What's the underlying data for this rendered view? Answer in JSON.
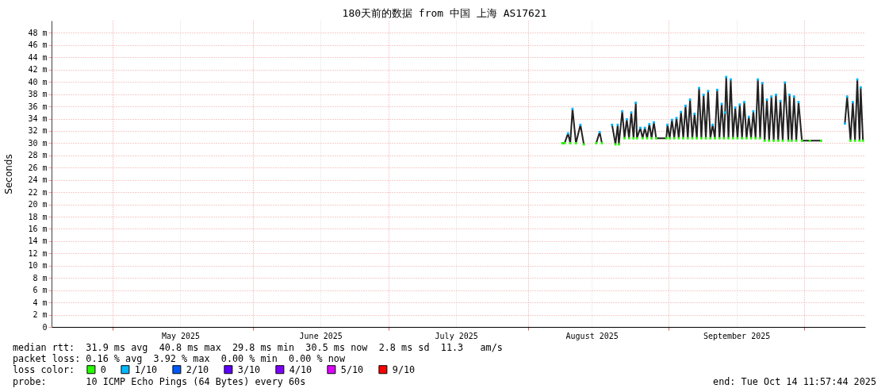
{
  "chart_data": {
    "type": "line",
    "title": "180天前的数据 from 中国 上海 AS17621",
    "ylabel": "Seconds",
    "legend_title": "loss color:",
    "annotations": [
      "median rtt:  31.9 ms avg  40.8 ms max  29.8 ms min  30.5 ms now  2.8 ms sd  11.3   am/s",
      "packet loss: 0.16 % avg  3.92 % max  0.00 % min  0.00 % now",
      "probe:       10 ICMP Echo Pings (64 Bytes) every 60s",
      "end: Tue Oct 14 11:57:44 2025"
    ],
    "xlim": [
      "2025-04-17T11:57",
      "2025-10-14T11:57"
    ],
    "xticks": [
      {
        "value": "2025-05-01",
        "label": null
      },
      {
        "value": "2025-05-16",
        "label": "May 2025"
      },
      {
        "value": "2025-06-01",
        "label": null
      },
      {
        "value": "2025-06-16",
        "label": "June 2025"
      },
      {
        "value": "2025-07-01",
        "label": null
      },
      {
        "value": "2025-07-16",
        "label": "July 2025"
      },
      {
        "value": "2025-08-01",
        "label": null
      },
      {
        "value": "2025-08-15",
        "label": "August 2025"
      },
      {
        "value": "2025-09-01",
        "label": null
      },
      {
        "value": "2025-09-16",
        "label": "September 2025"
      },
      {
        "value": "2025-10-01",
        "label": null
      }
    ],
    "ylim": [
      0,
      50
    ],
    "yticks": [
      0,
      {
        "value": 2,
        "label": "2 m"
      },
      {
        "value": 4,
        "label": "4 m"
      },
      {
        "value": 6,
        "label": "6 m"
      },
      {
        "value": 8,
        "label": "8 m"
      },
      {
        "value": 10,
        "label": "10 m"
      },
      {
        "value": 12,
        "label": "12 m"
      },
      {
        "value": 14,
        "label": "14 m"
      },
      {
        "value": 16,
        "label": "16 m"
      },
      {
        "value": 18,
        "label": "18 m"
      },
      {
        "value": 20,
        "label": "20 m"
      },
      {
        "value": 22,
        "label": "22 m"
      },
      {
        "value": 24,
        "label": "24 m"
      },
      {
        "value": 26,
        "label": "26 m"
      },
      {
        "value": 28,
        "label": "28 m"
      },
      {
        "value": 30,
        "label": "30 m"
      },
      {
        "value": 32,
        "label": "32 m"
      },
      {
        "value": 34,
        "label": "34 m"
      },
      {
        "value": 36,
        "label": "36 m"
      },
      {
        "value": 38,
        "label": "38 m"
      },
      {
        "value": 40,
        "label": "40 m"
      },
      {
        "value": 42,
        "label": "42 m"
      },
      {
        "value": 44,
        "label": "44 m"
      },
      {
        "value": 46,
        "label": "46 m"
      },
      {
        "value": 48,
        "label": "48 m"
      }
    ],
    "grid": true,
    "legend": "bottom left",
    "series": [
      {
        "color": "#222222",
        "x": [
          "2025-08-08T12:00",
          "2025-08-09T00:00",
          "2025-08-09T18:00",
          "2025-08-10T06:00",
          "2025-08-10T18:00",
          "2025-08-11T12:00",
          "2025-08-12T12:00",
          "2025-08-13T06:00",
          "2025-08-14T12:00",
          "2025-08-16T00:00",
          "2025-08-16T18:00",
          "2025-08-17T06:00",
          "2025-08-18T06:00",
          "2025-08-19T12:00",
          "2025-08-20T06:00",
          "2025-08-20T18:00",
          "2025-08-21T00:00",
          "2025-08-21T18:00",
          "2025-08-22T06:00",
          "2025-08-22T18:00",
          "2025-08-23T06:00",
          "2025-08-23T18:00",
          "2025-08-24T06:00",
          "2025-08-24T18:00",
          "2025-08-25T00:00",
          "2025-08-25T18:00",
          "2025-08-26T06:00",
          "2025-08-26T18:00",
          "2025-08-27T06:00",
          "2025-08-27T18:00",
          "2025-08-28T06:00",
          "2025-08-28T18:00",
          "2025-08-29T06:00",
          "2025-08-31T12:00",
          "2025-08-31T18:00",
          "2025-09-01T06:00",
          "2025-09-01T18:00",
          "2025-09-02T06:00",
          "2025-09-02T18:00",
          "2025-09-03T06:00",
          "2025-09-03T18:00",
          "2025-09-04T06:00",
          "2025-09-04T18:00",
          "2025-09-05T06:00",
          "2025-09-05T18:00",
          "2025-09-06T06:00",
          "2025-09-06T18:00",
          "2025-09-07T06:00",
          "2025-09-07T18:00",
          "2025-09-08T06:00",
          "2025-09-08T18:00",
          "2025-09-09T06:00",
          "2025-09-09T18:00",
          "2025-09-10T06:00",
          "2025-09-10T18:00",
          "2025-09-11T06:00",
          "2025-09-11T18:00",
          "2025-09-12T06:00",
          "2025-09-12T18:00",
          "2025-09-13T06:00",
          "2025-09-13T12:00",
          "2025-09-13T18:00",
          "2025-09-14T06:00",
          "2025-09-14T18:00",
          "2025-09-15T06:00",
          "2025-09-15T18:00",
          "2025-09-16T06:00",
          "2025-09-16T18:00",
          "2025-09-17T06:00",
          "2025-09-17T18:00",
          "2025-09-18T06:00",
          "2025-09-18T18:00",
          "2025-09-19T06:00",
          "2025-09-19T18:00",
          "2025-09-20T06:00",
          "2025-09-20T18:00",
          "2025-09-21T06:00",
          "2025-09-21T18:00",
          "2025-09-22T06:00",
          "2025-09-22T18:00",
          "2025-09-23T06:00",
          "2025-09-23T18:00",
          "2025-09-24T06:00",
          "2025-09-24T18:00",
          "2025-09-25T06:00",
          "2025-09-25T18:00",
          "2025-09-26T06:00",
          "2025-09-26T18:00",
          "2025-09-27T12:00",
          "2025-09-27T18:00",
          "2025-09-28T06:00",
          "2025-09-28T18:00",
          "2025-09-29T06:00",
          "2025-09-29T18:00",
          "2025-09-30T12:00",
          "2025-10-02T06:00",
          "2025-10-04T18:00",
          "2025-10-07T12:00",
          "2025-10-10T00:00",
          "2025-10-10T12:00",
          "2025-10-11T06:00",
          "2025-10-11T18:00",
          "2025-10-12T06:00",
          "2025-10-12T18:00",
          "2025-10-13T06:00",
          "2025-10-13T12:00",
          "2025-10-14T00:00"
        ],
        "values": [
          30.0,
          30.0,
          31.6,
          30.0,
          35.6,
          30.0,
          33.0,
          29.8,
          null,
          30.0,
          31.8,
          30.0,
          null,
          33.0,
          29.8,
          33.0,
          29.8,
          35.2,
          30.8,
          33.9,
          30.8,
          35.0,
          30.8,
          36.6,
          30.8,
          32.5,
          30.8,
          32.5,
          30.8,
          33.1,
          30.8,
          33.4,
          30.8,
          30.8,
          33.0,
          30.8,
          33.8,
          30.8,
          34.1,
          30.8,
          35.1,
          30.8,
          36.1,
          30.8,
          37.1,
          30.8,
          34.8,
          30.8,
          39.0,
          30.8,
          37.9,
          30.8,
          38.5,
          30.8,
          33.0,
          30.8,
          38.7,
          30.8,
          36.4,
          30.8,
          35.0,
          40.8,
          30.8,
          40.4,
          30.8,
          35.8,
          30.8,
          36.3,
          30.8,
          36.7,
          30.8,
          34.3,
          30.8,
          35.2,
          30.8,
          40.4,
          30.8,
          39.8,
          30.4,
          37.1,
          30.4,
          37.6,
          30.4,
          37.9,
          30.4,
          36.9,
          30.4,
          39.9,
          30.4,
          37.9,
          30.4,
          37.6,
          30.4,
          36.7,
          30.4,
          30.4,
          30.4,
          null,
          33.2,
          37.6,
          30.4,
          36.7,
          30.4,
          40.4,
          30.4,
          39.1,
          30.4
        ]
      },
      {
        "name": "0",
        "type": "scatter",
        "marker": "square",
        "color": "#26ff00",
        "x": [
          "2025-08-08T12:00",
          "2025-08-09T00:00",
          "2025-08-10T06:00",
          "2025-08-11T12:00",
          "2025-08-13T06:00",
          "2025-08-16T00:00",
          "2025-08-17T06:00",
          "2025-08-20T06:00",
          "2025-08-21T00:00",
          "2025-08-22T06:00",
          "2025-08-23T06:00",
          "2025-08-24T06:00",
          "2025-08-25T00:00",
          "2025-08-26T06:00",
          "2025-08-27T06:00",
          "2025-08-28T06:00",
          "2025-08-29T06:00",
          "2025-08-31T12:00",
          "2025-09-01T06:00",
          "2025-09-02T06:00",
          "2025-09-03T06:00",
          "2025-09-04T06:00",
          "2025-09-05T06:00",
          "2025-09-06T06:00",
          "2025-09-07T06:00",
          "2025-09-08T06:00",
          "2025-09-09T06:00",
          "2025-09-10T06:00",
          "2025-09-11T06:00",
          "2025-09-12T06:00",
          "2025-09-13T06:00",
          "2025-09-14T06:00",
          "2025-09-15T06:00",
          "2025-09-16T06:00",
          "2025-09-17T06:00",
          "2025-09-18T06:00",
          "2025-09-19T06:00",
          "2025-09-20T06:00",
          "2025-09-21T06:00",
          "2025-09-22T06:00",
          "2025-09-23T06:00",
          "2025-09-24T06:00",
          "2025-09-25T06:00",
          "2025-09-26T06:00",
          "2025-09-27T12:00",
          "2025-09-28T06:00",
          "2025-09-29T06:00",
          "2025-09-30T12:00",
          "2025-10-02T06:00",
          "2025-10-04T18:00",
          "2025-10-11T06:00",
          "2025-10-12T06:00",
          "2025-10-13T06:00",
          "2025-10-14T00:00"
        ],
        "values": [
          30.0,
          30.0,
          30.0,
          30.0,
          29.8,
          30.0,
          30.0,
          29.8,
          29.8,
          30.8,
          30.8,
          30.8,
          30.8,
          30.8,
          30.8,
          30.8,
          30.8,
          30.8,
          30.8,
          30.8,
          30.8,
          30.8,
          30.8,
          30.8,
          30.8,
          30.8,
          30.8,
          30.8,
          30.8,
          30.8,
          30.8,
          30.8,
          30.8,
          30.8,
          30.8,
          30.8,
          30.8,
          30.8,
          30.8,
          30.4,
          30.4,
          30.4,
          30.4,
          30.4,
          30.4,
          30.4,
          30.4,
          30.4,
          30.4,
          30.4,
          30.4,
          30.4,
          30.4,
          30.4
        ]
      },
      {
        "name": "1/10",
        "type": "scatter",
        "marker": "square",
        "color": "#00b8ff",
        "x": [
          "2025-08-09T18:00",
          "2025-08-10T18:00",
          "2025-08-12T12:00",
          "2025-08-16T18:00",
          "2025-08-19T12:00",
          "2025-08-20T18:00",
          "2025-08-21T18:00",
          "2025-08-22T18:00",
          "2025-08-23T18:00",
          "2025-08-24T18:00",
          "2025-08-25T18:00",
          "2025-08-26T18:00",
          "2025-08-27T18:00",
          "2025-08-28T18:00",
          "2025-08-31T18:00",
          "2025-09-01T18:00",
          "2025-09-02T18:00",
          "2025-09-03T18:00",
          "2025-09-04T18:00",
          "2025-09-05T18:00",
          "2025-09-06T18:00",
          "2025-09-07T18:00",
          "2025-09-08T18:00",
          "2025-09-09T18:00",
          "2025-09-10T18:00",
          "2025-09-11T18:00",
          "2025-09-12T18:00",
          "2025-09-13T12:00",
          "2025-09-13T18:00",
          "2025-09-14T18:00",
          "2025-09-15T18:00",
          "2025-09-16T18:00",
          "2025-09-17T18:00",
          "2025-09-18T18:00",
          "2025-09-19T18:00",
          "2025-09-20T18:00",
          "2025-09-21T18:00",
          "2025-09-22T18:00",
          "2025-09-23T18:00",
          "2025-09-24T18:00",
          "2025-09-25T18:00",
          "2025-09-26T18:00",
          "2025-09-27T18:00",
          "2025-09-28T18:00",
          "2025-09-29T18:00",
          "2025-10-10T00:00",
          "2025-10-10T12:00",
          "2025-10-11T18:00",
          "2025-10-12T18:00",
          "2025-10-13T12:00"
        ],
        "values": [
          31.6,
          35.6,
          33.0,
          31.8,
          33.0,
          33.0,
          35.2,
          33.9,
          35.0,
          36.6,
          32.5,
          32.5,
          33.1,
          33.4,
          33.0,
          33.8,
          34.1,
          35.1,
          36.1,
          37.1,
          34.8,
          39.0,
          37.9,
          38.5,
          33.0,
          38.7,
          36.4,
          35.0,
          40.8,
          40.4,
          35.8,
          36.3,
          36.7,
          34.3,
          35.2,
          40.4,
          39.8,
          37.1,
          37.6,
          37.9,
          36.9,
          39.9,
          37.9,
          37.6,
          36.7,
          33.2,
          37.6,
          36.7,
          40.4,
          39.1
        ]
      },
      {
        "name": "2/10",
        "type": "scatter",
        "marker": "square",
        "color": "#0059ff"
      },
      {
        "name": "3/10",
        "type": "scatter",
        "marker": "square",
        "color": "#5e00ff"
      },
      {
        "name": "4/10",
        "type": "scatter",
        "marker": "square",
        "color": "#7e00ff"
      },
      {
        "name": "5/10",
        "type": "scatter",
        "marker": "square",
        "color": "#dd00ff"
      },
      {
        "name": "9/10",
        "type": "scatter",
        "marker": "square",
        "color": "#ff0000"
      }
    ]
  }
}
